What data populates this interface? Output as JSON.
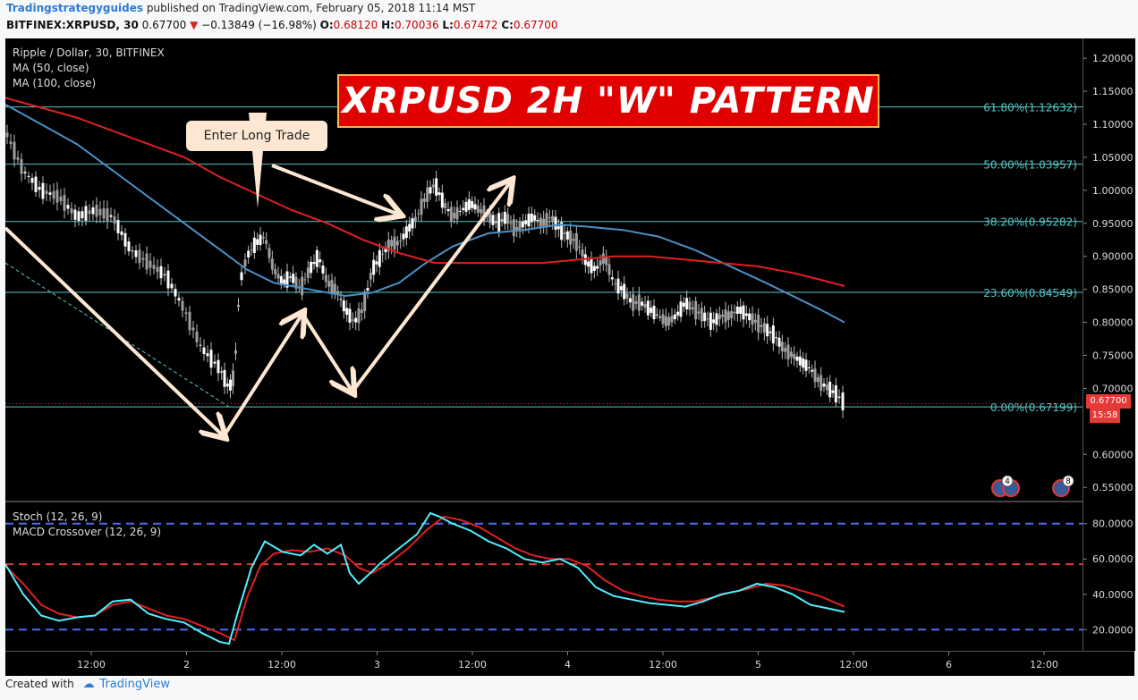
{
  "header": {
    "author": "Tradingstrategyguides",
    "published": "published on TradingView.com, February 05, 2018 11:14 MST",
    "symbol": "BITFINEX:XRPUSD, 30",
    "last": "0.67700",
    "arrow": "▼",
    "change": "−0.13849 (−16.98%)",
    "ohlc_o_label": "O:",
    "ohlc_o": "0.68120",
    "ohlc_h_label": "H:",
    "ohlc_h": "0.70036",
    "ohlc_l_label": "L:",
    "ohlc_l": "0.67472",
    "ohlc_c_label": "C:",
    "ohlc_c": "0.67700"
  },
  "legend": {
    "instrument": "Ripple / Dollar, 30, BITFINEX",
    "ma50": "MA (50, close)",
    "ma100": "MA (100, close)",
    "stoch": "Stoch (12, 26, 9)",
    "macd": "MACD Crossover (12, 26, 9)"
  },
  "annotations": {
    "title": "XRPUSD 2H \"W\" PATTERN",
    "callout": "Enter Long Trade"
  },
  "price_tags": {
    "last": "0.67700",
    "countdown": "15:58"
  },
  "event_badges": [
    "4",
    "8"
  ],
  "footer": {
    "created_with": "Created with",
    "brand": "TradingView"
  },
  "colors": {
    "ma50": "#4a90c8",
    "ma100": "#e02020",
    "fib": "#56c6c6",
    "stoch_k": "#4ff0ff",
    "stoch_d": "#e02020",
    "arrow": "#fde7d3"
  },
  "chart_data": [
    {
      "type": "line",
      "name": "price",
      "y_axis_ticks": [
        "1.20000",
        "1.15000",
        "1.10000",
        "1.05000",
        "1.00000",
        "0.95000",
        "0.90000",
        "0.85000",
        "0.80000",
        "0.75000",
        "0.70000",
        "0.60000",
        "0.55000"
      ],
      "ylim": [
        0.53,
        1.23
      ],
      "x_axis_ticks": [
        "12:00",
        "2",
        "12:00",
        "3",
        "12:00",
        "4",
        "12:00",
        "5",
        "12:00",
        "6",
        "12:00"
      ],
      "fib_levels": [
        {
          "label": "61.80%(1.12632)",
          "value": 1.12632
        },
        {
          "label": "50.00%(1.03957)",
          "value": 1.03957
        },
        {
          "label": "38.20%(0.95282)",
          "value": 0.95282
        },
        {
          "label": "23.60%(0.84549)",
          "value": 0.84549
        },
        {
          "label": "0.00%(0.67199)",
          "value": 0.67199
        }
      ],
      "close_path": [
        [
          0,
          1.09
        ],
        [
          20,
          1.03
        ],
        [
          40,
          1.0
        ],
        [
          60,
          0.99
        ],
        [
          80,
          0.96
        ],
        [
          100,
          0.97
        ],
        [
          120,
          0.96
        ],
        [
          140,
          0.91
        ],
        [
          160,
          0.89
        ],
        [
          180,
          0.87
        ],
        [
          200,
          0.82
        ],
        [
          220,
          0.76
        ],
        [
          240,
          0.73
        ],
        [
          250,
          0.7
        ],
        [
          256,
          0.72
        ],
        [
          262,
          0.86
        ],
        [
          270,
          0.9
        ],
        [
          280,
          0.92
        ],
        [
          290,
          0.93
        ],
        [
          300,
          0.88
        ],
        [
          310,
          0.86
        ],
        [
          320,
          0.87
        ],
        [
          330,
          0.85
        ],
        [
          340,
          0.88
        ],
        [
          350,
          0.9
        ],
        [
          360,
          0.86
        ],
        [
          370,
          0.85
        ],
        [
          380,
          0.82
        ],
        [
          390,
          0.8
        ],
        [
          400,
          0.82
        ],
        [
          410,
          0.88
        ],
        [
          420,
          0.9
        ],
        [
          430,
          0.92
        ],
        [
          440,
          0.92
        ],
        [
          450,
          0.94
        ],
        [
          460,
          0.96
        ],
        [
          470,
          0.99
        ],
        [
          480,
          1.01
        ],
        [
          490,
          0.98
        ],
        [
          500,
          0.96
        ],
        [
          510,
          0.97
        ],
        [
          520,
          0.98
        ],
        [
          530,
          0.97
        ],
        [
          540,
          0.96
        ],
        [
          550,
          0.95
        ],
        [
          560,
          0.96
        ],
        [
          570,
          0.94
        ],
        [
          580,
          0.95
        ],
        [
          590,
          0.96
        ],
        [
          600,
          0.95
        ],
        [
          610,
          0.96
        ],
        [
          620,
          0.94
        ],
        [
          630,
          0.93
        ],
        [
          640,
          0.92
        ],
        [
          650,
          0.89
        ],
        [
          660,
          0.88
        ],
        [
          670,
          0.9
        ],
        [
          680,
          0.86
        ],
        [
          690,
          0.85
        ],
        [
          700,
          0.83
        ],
        [
          710,
          0.83
        ],
        [
          720,
          0.82
        ],
        [
          730,
          0.81
        ],
        [
          740,
          0.8
        ],
        [
          750,
          0.81
        ],
        [
          760,
          0.83
        ],
        [
          770,
          0.82
        ],
        [
          780,
          0.81
        ],
        [
          790,
          0.8
        ],
        [
          800,
          0.81
        ],
        [
          810,
          0.81
        ],
        [
          820,
          0.82
        ],
        [
          830,
          0.81
        ],
        [
          840,
          0.8
        ],
        [
          850,
          0.79
        ],
        [
          860,
          0.78
        ],
        [
          870,
          0.76
        ],
        [
          880,
          0.75
        ],
        [
          890,
          0.74
        ],
        [
          900,
          0.73
        ],
        [
          910,
          0.71
        ],
        [
          920,
          0.7
        ],
        [
          930,
          0.69
        ],
        [
          938,
          0.677
        ]
      ],
      "ma50_path": [
        [
          0,
          1.13
        ],
        [
          40,
          1.1
        ],
        [
          80,
          1.07
        ],
        [
          120,
          1.03
        ],
        [
          160,
          0.99
        ],
        [
          200,
          0.95
        ],
        [
          240,
          0.91
        ],
        [
          270,
          0.88
        ],
        [
          300,
          0.86
        ],
        [
          340,
          0.85
        ],
        [
          380,
          0.84
        ],
        [
          410,
          0.845
        ],
        [
          440,
          0.86
        ],
        [
          470,
          0.89
        ],
        [
          500,
          0.915
        ],
        [
          540,
          0.935
        ],
        [
          580,
          0.94
        ],
        [
          620,
          0.948
        ],
        [
          650,
          0.945
        ],
        [
          690,
          0.94
        ],
        [
          730,
          0.93
        ],
        [
          770,
          0.91
        ],
        [
          810,
          0.885
        ],
        [
          850,
          0.86
        ],
        [
          880,
          0.84
        ],
        [
          910,
          0.82
        ],
        [
          938,
          0.8
        ]
      ],
      "ma100_path": [
        [
          0,
          1.14
        ],
        [
          40,
          1.125
        ],
        [
          80,
          1.11
        ],
        [
          120,
          1.09
        ],
        [
          160,
          1.07
        ],
        [
          200,
          1.05
        ],
        [
          240,
          1.02
        ],
        [
          280,
          0.995
        ],
        [
          320,
          0.97
        ],
        [
          360,
          0.95
        ],
        [
          400,
          0.925
        ],
        [
          440,
          0.905
        ],
        [
          480,
          0.89
        ],
        [
          520,
          0.89
        ],
        [
          560,
          0.89
        ],
        [
          600,
          0.89
        ],
        [
          640,
          0.895
        ],
        [
          680,
          0.9
        ],
        [
          720,
          0.9
        ],
        [
          760,
          0.895
        ],
        [
          800,
          0.89
        ],
        [
          840,
          0.885
        ],
        [
          880,
          0.875
        ],
        [
          910,
          0.865
        ],
        [
          938,
          0.855
        ]
      ]
    },
    {
      "type": "line",
      "name": "oscillator",
      "y_axis_ticks": [
        "80.0000",
        "60.0000",
        "40.0000",
        "20.0000"
      ],
      "ylim": [
        8,
        92
      ],
      "levels": [
        80,
        57,
        20
      ],
      "k_path": [
        [
          0,
          57
        ],
        [
          20,
          40
        ],
        [
          40,
          28
        ],
        [
          60,
          25
        ],
        [
          80,
          27
        ],
        [
          100,
          28
        ],
        [
          120,
          36
        ],
        [
          140,
          37
        ],
        [
          160,
          29
        ],
        [
          180,
          26
        ],
        [
          200,
          24
        ],
        [
          220,
          18
        ],
        [
          240,
          13
        ],
        [
          250,
          12
        ],
        [
          260,
          30
        ],
        [
          275,
          55
        ],
        [
          290,
          70
        ],
        [
          310,
          64
        ],
        [
          330,
          62
        ],
        [
          345,
          68
        ],
        [
          360,
          63
        ],
        [
          375,
          68
        ],
        [
          385,
          52
        ],
        [
          395,
          46
        ],
        [
          410,
          53
        ],
        [
          420,
          58
        ],
        [
          440,
          66
        ],
        [
          460,
          74
        ],
        [
          475,
          86
        ],
        [
          485,
          84
        ],
        [
          500,
          80
        ],
        [
          520,
          76
        ],
        [
          540,
          70
        ],
        [
          560,
          66
        ],
        [
          580,
          60
        ],
        [
          600,
          58
        ],
        [
          620,
          60
        ],
        [
          640,
          55
        ],
        [
          660,
          44
        ],
        [
          680,
          39
        ],
        [
          700,
          37
        ],
        [
          720,
          35
        ],
        [
          740,
          34
        ],
        [
          760,
          33
        ],
        [
          780,
          36
        ],
        [
          800,
          40
        ],
        [
          820,
          42
        ],
        [
          840,
          46
        ],
        [
          860,
          44
        ],
        [
          880,
          40
        ],
        [
          900,
          34
        ],
        [
          920,
          32
        ],
        [
          938,
          30
        ]
      ],
      "d_path": [
        [
          0,
          56
        ],
        [
          20,
          46
        ],
        [
          40,
          34
        ],
        [
          60,
          29
        ],
        [
          80,
          27
        ],
        [
          100,
          28
        ],
        [
          120,
          34
        ],
        [
          140,
          36
        ],
        [
          160,
          32
        ],
        [
          180,
          28
        ],
        [
          200,
          26
        ],
        [
          220,
          22
        ],
        [
          240,
          18
        ],
        [
          256,
          14
        ],
        [
          270,
          38
        ],
        [
          285,
          56
        ],
        [
          300,
          63
        ],
        [
          320,
          65
        ],
        [
          340,
          64
        ],
        [
          360,
          66
        ],
        [
          380,
          62
        ],
        [
          395,
          55
        ],
        [
          410,
          52
        ],
        [
          430,
          58
        ],
        [
          450,
          66
        ],
        [
          470,
          76
        ],
        [
          490,
          84
        ],
        [
          510,
          82
        ],
        [
          530,
          78
        ],
        [
          550,
          72
        ],
        [
          570,
          66
        ],
        [
          590,
          62
        ],
        [
          610,
          60
        ],
        [
          630,
          60
        ],
        [
          650,
          56
        ],
        [
          670,
          48
        ],
        [
          690,
          42
        ],
        [
          710,
          39
        ],
        [
          730,
          37
        ],
        [
          750,
          36
        ],
        [
          770,
          36
        ],
        [
          790,
          38
        ],
        [
          810,
          41
        ],
        [
          830,
          43
        ],
        [
          850,
          46
        ],
        [
          870,
          45
        ],
        [
          890,
          42
        ],
        [
          910,
          39
        ],
        [
          938,
          33
        ]
      ]
    }
  ]
}
